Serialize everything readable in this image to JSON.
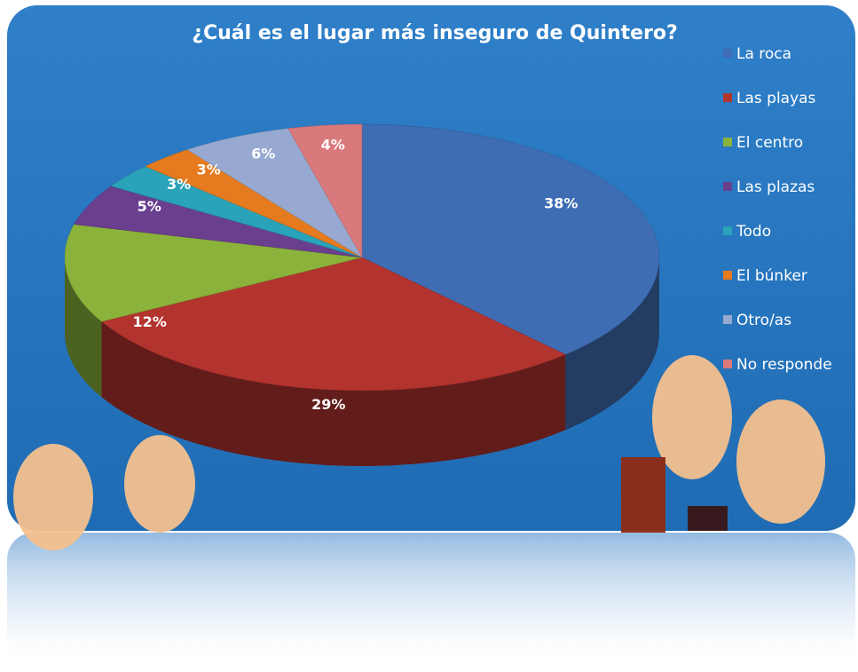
{
  "chart_data": {
    "type": "pie3d",
    "title": "¿Cuál es el lugar más inseguro de Quintero?",
    "categories": [
      "La roca",
      "Las playas",
      "El centro",
      "Las plazas",
      "Todo",
      "El búnker",
      "Otro/as",
      "No responde"
    ],
    "values": [
      38,
      29,
      12,
      5,
      3,
      3,
      6,
      4
    ],
    "value_labels": [
      "38%",
      "29%",
      "12%",
      "5%",
      "3%",
      "3%",
      "6%",
      "4%"
    ],
    "colors": [
      "#3f6db3",
      "#b3332e",
      "#8bb23a",
      "#6a3f8e",
      "#2aa2b7",
      "#e57b1e",
      "#97a9d0",
      "#d9797c"
    ],
    "legend": "right"
  }
}
